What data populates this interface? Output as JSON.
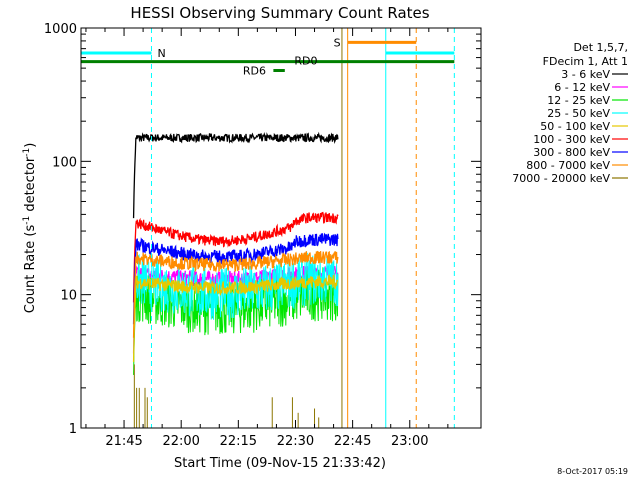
{
  "chart_data": {
    "type": "line",
    "title": "HESSI Observing Summary Count Rates",
    "xlabel": "Start Time (09-Nov-15 21:33:42)",
    "ylabel_main": "Count Rate (s",
    "ylabel_sup1": "-1",
    "ylabel_mid": " detector",
    "ylabel_sup2": "-1",
    "ylabel_end": ")",
    "yscale": "log",
    "ylim": [
      1,
      1000
    ],
    "x_ticks": [
      "21:45",
      "22:00",
      "22:15",
      "22:30",
      "22:45",
      "23:00"
    ],
    "y_ticks": [
      "1",
      "10",
      "100",
      "1000"
    ],
    "xlim_minutes": [
      0,
      105
    ],
    "legend_placement": "right",
    "legend_header": [
      "Det 1,5,7,",
      "FDecim 1, Att 1"
    ],
    "series": [
      {
        "name": "3 - 6 keV",
        "color": "#000000",
        "level": 150,
        "noise": 0.03,
        "lag": 0,
        "dip": 0.0
      },
      {
        "name": "6 - 12 keV",
        "color": "#ff00ff",
        "level": 14.5,
        "noise": 0.06,
        "lag": 0,
        "dip": 0.1
      },
      {
        "name": "12 - 25 keV",
        "color": "#00e600",
        "level": 10,
        "noise": 0.2,
        "lag": 0,
        "dip": 0.22
      },
      {
        "name": "25 - 50 keV",
        "color": "#00ffff",
        "level": 13,
        "noise": 0.2,
        "lag": 0,
        "dip": 0.22
      },
      {
        "name": "50 - 100 keV",
        "color": "#e6c800",
        "level": 12.5,
        "noise": 0.05,
        "lag": 0,
        "dip": 0.1
      },
      {
        "name": "100 - 300 keV",
        "color": "#ff0000",
        "level": 35,
        "noise": 0.04,
        "lag": 1,
        "dip": 0.28
      },
      {
        "name": "300 - 800 keV",
        "color": "#0000ff",
        "level": 24,
        "noise": 0.05,
        "lag": 1,
        "dip": 0.2
      },
      {
        "name": "800 - 7000 keV",
        "color": "#ff8c00",
        "level": 19,
        "noise": 0.05,
        "lag": 0,
        "dip": 0.12
      },
      {
        "name": "7000 - 20000 keV",
        "color": "#8b7500",
        "level": 1,
        "noise": 0,
        "lag": 0,
        "dip": 0
      }
    ],
    "data_interval_minutes": [
      13.8,
      67.5
    ],
    "night_events": [
      {
        "label": "N",
        "color": "#00ffff",
        "start": 0,
        "end": 18.5,
        "level": 650
      },
      {
        "label": "",
        "color": "#00ffff",
        "start": 80,
        "end": 98,
        "level": 650
      }
    ],
    "saa_events": [
      {
        "label": "S",
        "color": "#ff8c00",
        "start": 70,
        "end": 88,
        "level": 780
      }
    ],
    "flag_lines": [
      {
        "label": "RD0",
        "color": "#008000",
        "start": 0,
        "end": 98,
        "level": 560
      },
      {
        "label": "RD6",
        "color": "#008000",
        "start": 50.5,
        "end": 53.5,
        "level": 480
      }
    ],
    "vlines": [
      {
        "minute": 0,
        "color": "#00ffff",
        "style": "solid"
      },
      {
        "minute": 18.5,
        "color": "#00ffff",
        "style": "dashed"
      },
      {
        "minute": 70,
        "color": "#ff8c00",
        "style": "solid"
      },
      {
        "minute": 80,
        "color": "#00ffff",
        "style": "solid"
      },
      {
        "minute": 88,
        "color": "#ff8c00",
        "style": "dashed"
      },
      {
        "minute": 98,
        "color": "#00ffff",
        "style": "dashed"
      },
      {
        "minute": 68.5,
        "color": "#8b7500",
        "style": "solid"
      }
    ],
    "timestamp": "8-Oct-2017 05:19"
  }
}
